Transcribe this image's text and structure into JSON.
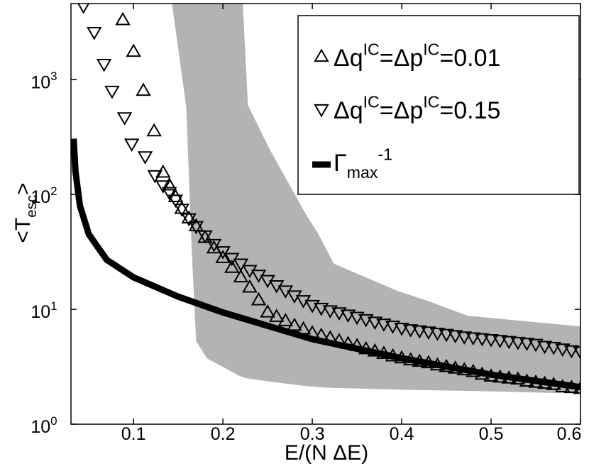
{
  "chart_data": {
    "type": "scatter",
    "xlabel": "E/(N ΔE)",
    "ylabel": "<T_{esc}>",
    "log_y": true,
    "xlim": [
      0.03,
      0.6
    ],
    "ylim": [
      1,
      4600
    ],
    "xticks": [
      0.1,
      0.2,
      0.3,
      0.4,
      0.5,
      0.6
    ],
    "yticks": [
      {
        "value": 1,
        "label": "10^{0}"
      },
      {
        "value": 10,
        "label": "10^{1}"
      },
      {
        "value": 100,
        "label": "10^{2}"
      },
      {
        "value": 1000,
        "label": "10^{3}"
      }
    ],
    "legend": "upper right",
    "band": {
      "color": "#b3b3b3",
      "x": [
        0.137,
        0.159,
        0.165,
        0.17,
        0.182,
        0.22,
        0.228,
        0.252,
        0.292,
        0.307,
        0.324,
        0.395,
        0.427,
        0.474,
        0.6
      ],
      "upper": [
        10000,
        10000,
        10000,
        10000,
        10000,
        10000,
        600,
        250,
        69,
        45,
        25,
        14.5,
        12,
        8.8,
        7.1
      ],
      "lower": [
        10000,
        580,
        34,
        5.3,
        3.75,
        2.6,
        2.5,
        2.35,
        2.15,
        2.1,
        2.07,
        2.0,
        1.98,
        1.95,
        1.85
      ]
    },
    "series": [
      {
        "name": "Δq^{IC}=Δp^{IC}=0.01",
        "marker": "triangle-up",
        "color": "#000000",
        "x": [
          0.088,
          0.1,
          0.111,
          0.123,
          0.133,
          0.14,
          0.147,
          0.154,
          0.162,
          0.17,
          0.18,
          0.19,
          0.2,
          0.21,
          0.22,
          0.23,
          0.24,
          0.25,
          0.26,
          0.27,
          0.28,
          0.29,
          0.3,
          0.31,
          0.32,
          0.33,
          0.34,
          0.35,
          0.36,
          0.37,
          0.38,
          0.39,
          0.4,
          0.41,
          0.42,
          0.43,
          0.44,
          0.45,
          0.46,
          0.47,
          0.48,
          0.49,
          0.5,
          0.51,
          0.52,
          0.53,
          0.54,
          0.55,
          0.56,
          0.57,
          0.58,
          0.59,
          0.6
        ],
        "values": [
          3300,
          1750,
          800,
          355,
          155,
          120,
          95,
          75,
          62,
          53,
          42,
          34,
          28,
          23,
          19,
          15.5,
          12,
          9.4,
          8.6,
          7.9,
          7.2,
          6.7,
          6.2,
          5.9,
          5.6,
          5.3,
          5.0,
          4.8,
          4.5,
          4.3,
          4.1,
          3.9,
          3.75,
          3.6,
          3.5,
          3.4,
          3.25,
          3.15,
          3.05,
          2.95,
          2.85,
          2.7,
          2.6,
          2.55,
          2.5,
          2.45,
          2.35,
          2.3,
          2.25,
          2.2,
          2.1,
          2.07,
          2.03
        ]
      },
      {
        "name": "Δq^{IC}=Δp^{IC}=0.15",
        "marker": "triangle-down",
        "color": "#000000",
        "x": [
          0.044,
          0.056,
          0.067,
          0.076,
          0.09,
          0.098,
          0.113,
          0.124,
          0.133,
          0.14,
          0.147,
          0.154,
          0.162,
          0.17,
          0.18,
          0.19,
          0.2,
          0.21,
          0.22,
          0.23,
          0.24,
          0.25,
          0.26,
          0.27,
          0.28,
          0.29,
          0.3,
          0.31,
          0.32,
          0.33,
          0.34,
          0.35,
          0.36,
          0.37,
          0.38,
          0.39,
          0.4,
          0.41,
          0.42,
          0.43,
          0.44,
          0.45,
          0.46,
          0.47,
          0.48,
          0.49,
          0.5,
          0.51,
          0.52,
          0.53,
          0.54,
          0.55,
          0.56,
          0.57,
          0.58,
          0.59,
          0.6
        ],
        "values": [
          4400,
          2600,
          1370,
          800,
          470,
          277,
          215,
          147,
          120,
          105,
          90,
          75,
          62,
          53,
          44,
          37,
          32,
          28,
          25,
          22,
          20,
          18,
          16.2,
          14.6,
          13.2,
          12,
          10.9,
          10.3,
          9.8,
          9.4,
          9.0,
          8.6,
          8.2,
          7.8,
          7.5,
          7.2,
          6.9,
          6.7,
          6.55,
          6.4,
          6.25,
          6.1,
          5.95,
          5.8,
          5.7,
          5.6,
          5.5,
          5.4,
          5.3,
          5.2,
          5.1,
          5.0,
          4.8,
          4.7,
          4.55,
          4.4,
          4.3
        ]
      },
      {
        "name": "Γ_{max}^{-1}",
        "marker": "line",
        "color": "#000000",
        "x": [
          0.033,
          0.035,
          0.04,
          0.05,
          0.07,
          0.1,
          0.15,
          0.2,
          0.3,
          0.4,
          0.5,
          0.6
        ],
        "values": [
          306,
          160,
          80,
          45,
          27,
          19,
          12.9,
          9.4,
          5.5,
          3.75,
          2.7,
          2.1
        ]
      }
    ]
  }
}
